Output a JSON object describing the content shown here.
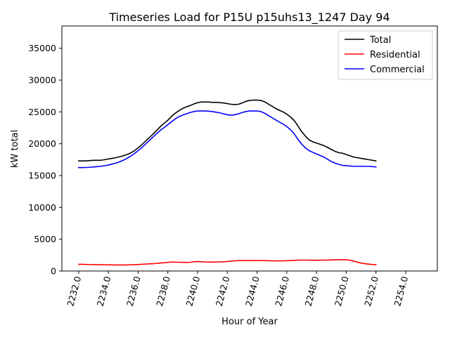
{
  "chart_data": {
    "type": "line",
    "title": "Timeseries Load for P15U p15uhs13_1247  Day 94",
    "xlabel": "Hour of Year",
    "ylabel": "kW total",
    "xlim": [
      2230.87,
      2256.13
    ],
    "ylim": [
      0,
      38500
    ],
    "xticks": [
      2232,
      2234,
      2236,
      2238,
      2240,
      2242,
      2244,
      2246,
      2248,
      2250,
      2252,
      2254
    ],
    "xtick_labels": [
      "2232.0",
      "2234.0",
      "2236.0",
      "2238.0",
      "2240.0",
      "2242.0",
      "2244.0",
      "2246.0",
      "2248.0",
      "2250.0",
      "2252.0",
      "2254.0"
    ],
    "yticks": [
      0,
      5000,
      10000,
      15000,
      20000,
      25000,
      30000,
      35000
    ],
    "ytick_labels": [
      "0",
      "5000",
      "10000",
      "15000",
      "20000",
      "25000",
      "30000",
      "35000"
    ],
    "legend_position": "top-right",
    "grid": false,
    "x_start": 2232.0,
    "x_step": 0.25,
    "series": [
      {
        "name": "Total",
        "color": "#000000",
        "values": [
          17300,
          17300,
          17300,
          17350,
          17400,
          17400,
          17400,
          17500,
          17600,
          17700,
          17800,
          17950,
          18100,
          18300,
          18550,
          18900,
          19350,
          19850,
          20400,
          20950,
          21500,
          22100,
          22700,
          23200,
          23700,
          24300,
          24800,
          25200,
          25550,
          25800,
          26000,
          26250,
          26450,
          26550,
          26550,
          26550,
          26500,
          26500,
          26450,
          26400,
          26300,
          26200,
          26150,
          26200,
          26400,
          26650,
          26800,
          26850,
          26850,
          26800,
          26600,
          26250,
          25900,
          25550,
          25250,
          25000,
          24650,
          24200,
          23650,
          22800,
          21900,
          21200,
          20600,
          20300,
          20100,
          19900,
          19700,
          19400,
          19100,
          18800,
          18600,
          18500,
          18300,
          18100,
          17900,
          17800,
          17700,
          17600,
          17500,
          17400,
          17300
        ]
      },
      {
        "name": "Residential",
        "color": "#ff0000",
        "values": [
          1050,
          1050,
          1030,
          1020,
          1010,
          1000,
          990,
          980,
          970,
          960,
          950,
          950,
          950,
          960,
          980,
          1000,
          1030,
          1060,
          1090,
          1120,
          1150,
          1200,
          1250,
          1300,
          1350,
          1400,
          1400,
          1380,
          1360,
          1340,
          1380,
          1450,
          1480,
          1450,
          1420,
          1400,
          1400,
          1410,
          1420,
          1450,
          1500,
          1550,
          1600,
          1630,
          1650,
          1650,
          1650,
          1660,
          1660,
          1650,
          1640,
          1620,
          1600,
          1590,
          1590,
          1600,
          1620,
          1650,
          1680,
          1700,
          1710,
          1710,
          1700,
          1690,
          1690,
          1700,
          1710,
          1720,
          1740,
          1760,
          1770,
          1770,
          1760,
          1700,
          1550,
          1400,
          1250,
          1150,
          1080,
          1030,
          1000
        ]
      },
      {
        "name": "Commercial",
        "color": "#0000ff",
        "values": [
          16250,
          16250,
          16270,
          16300,
          16350,
          16400,
          16450,
          16550,
          16650,
          16800,
          16950,
          17150,
          17400,
          17700,
          18050,
          18450,
          18900,
          19400,
          19950,
          20500,
          21050,
          21600,
          22100,
          22550,
          23000,
          23450,
          23900,
          24250,
          24500,
          24700,
          24900,
          25050,
          25150,
          25150,
          25150,
          25100,
          25050,
          24950,
          24850,
          24700,
          24550,
          24500,
          24550,
          24700,
          24900,
          25050,
          25150,
          25150,
          25150,
          25050,
          24800,
          24450,
          24100,
          23750,
          23400,
          23100,
          22700,
          22200,
          21550,
          20700,
          19950,
          19350,
          18900,
          18650,
          18400,
          18150,
          17900,
          17550,
          17200,
          16950,
          16750,
          16600,
          16550,
          16500,
          16450,
          16450,
          16450,
          16450,
          16450,
          16400,
          16350
        ]
      }
    ]
  }
}
